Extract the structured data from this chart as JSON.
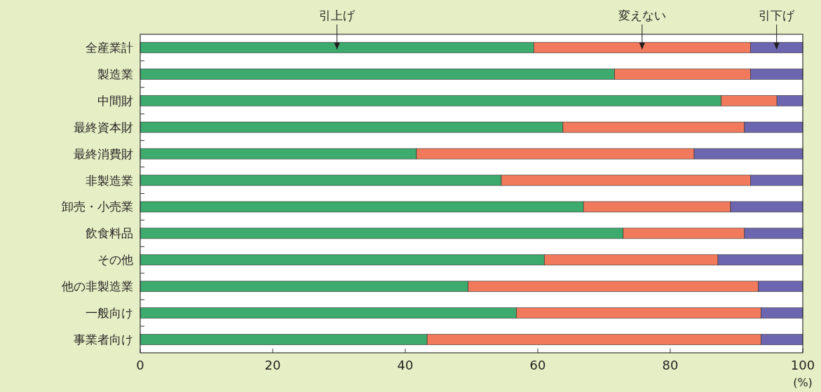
{
  "chart_data": {
    "type": "bar",
    "orientation": "horizontal",
    "stacked": true,
    "categories": [
      "全産業計",
      "製造業",
      "中間財",
      "最終資本財",
      "最終消費財",
      "非製造業",
      "卸売・小売業",
      "飲食料品",
      "その他",
      "他の非製造業",
      "一般向け",
      "事業者向け"
    ],
    "series": [
      {
        "name": "引上げ",
        "color": "#3daa6e",
        "values": [
          59.4,
          71.6,
          87.7,
          63.8,
          41.7,
          54.5,
          66.9,
          72.9,
          61.0,
          49.5,
          56.8,
          43.3
        ]
      },
      {
        "name": "変えない",
        "color": "#f27a5c",
        "values": [
          32.7,
          20.5,
          8.4,
          27.4,
          41.9,
          37.6,
          22.2,
          18.3,
          26.2,
          43.8,
          36.9,
          50.4
        ]
      },
      {
        "name": "引下げ",
        "color": "#6c66b0",
        "values": [
          7.9,
          7.9,
          3.9,
          8.8,
          16.4,
          7.9,
          10.9,
          8.8,
          12.8,
          6.7,
          6.3,
          6.3
        ]
      }
    ],
    "xlim": [
      0,
      100
    ],
    "xticks": [
      0,
      20,
      40,
      60,
      80,
      100
    ],
    "xlabel": "(%)"
  }
}
